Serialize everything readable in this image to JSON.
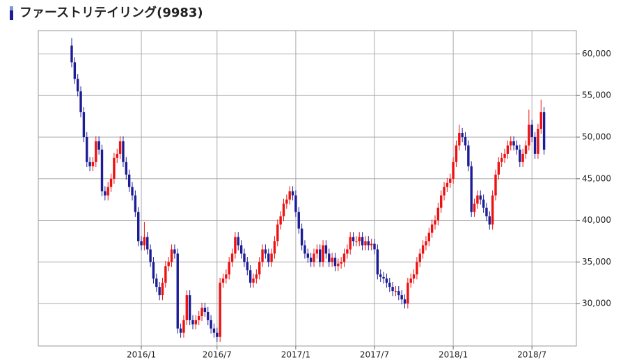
{
  "chart_data": {
    "type": "candlestick",
    "title": "ファーストリテイリング(9983)",
    "categories": [
      null,
      null,
      null,
      null,
      null,
      null,
      null,
      null,
      null,
      null,
      null,
      null,
      null,
      null,
      null,
      null,
      null,
      null,
      null,
      null,
      null,
      null,
      null,
      "2016/1",
      null,
      null,
      null,
      null,
      null,
      null,
      null,
      null,
      null,
      null,
      null,
      null,
      null,
      null,
      null,
      null,
      null,
      null,
      null,
      null,
      null,
      null,
      null,
      null,
      "2016/7",
      null,
      null,
      null,
      null,
      null,
      null,
      null,
      null,
      null,
      null,
      null,
      null,
      null,
      null,
      null,
      null,
      null,
      null,
      null,
      null,
      null,
      null,
      null,
      null,
      null,
      "2017/1",
      null,
      null,
      null,
      null,
      null,
      null,
      null,
      null,
      null,
      null,
      null,
      null,
      null,
      null,
      null,
      null,
      null,
      null,
      null,
      null,
      null,
      null,
      null,
      null,
      null,
      "2017/7",
      null,
      null,
      null,
      null,
      null,
      null,
      null,
      null,
      null,
      null,
      null,
      null,
      null,
      null,
      null,
      null,
      null,
      null,
      null,
      null,
      null,
      null,
      null,
      null,
      null,
      "2018/1",
      null,
      null,
      null,
      null,
      null,
      null,
      null,
      null,
      null,
      null,
      null,
      null,
      null,
      null,
      null,
      null,
      null,
      null,
      null,
      null,
      null,
      null,
      null,
      null,
      null,
      "2018/7",
      null,
      null,
      null,
      null
    ],
    "open": [
      61000,
      59000,
      57000,
      55500,
      53000,
      50000,
      47000,
      46500,
      47000,
      49500,
      48500,
      43500,
      43000,
      44000,
      45000,
      47500,
      48000,
      49500,
      47000,
      45500,
      44000,
      43000,
      41000,
      37500,
      37000,
      38000,
      36500,
      35000,
      33000,
      32000,
      31000,
      32500,
      34500,
      35000,
      36500,
      36000,
      27000,
      26500,
      28000,
      31000,
      28000,
      27500,
      28000,
      28500,
      29500,
      29000,
      28000,
      27000,
      26500,
      26000,
      32500,
      33000,
      33500,
      35000,
      36000,
      38000,
      37000,
      36000,
      35000,
      34000,
      32500,
      33000,
      33500,
      35000,
      36500,
      36000,
      35000,
      36000,
      37500,
      39500,
      40500,
      42000,
      42500,
      43500,
      43000,
      41000,
      39000,
      37000,
      36000,
      35500,
      35000,
      36000,
      36500,
      35000,
      37000,
      36000,
      35000,
      35500,
      34500,
      34800,
      35000,
      36000,
      36500,
      38000,
      37500,
      37500,
      38000,
      37000,
      37500,
      37000,
      37200,
      36500,
      33500,
      33200,
      33000,
      32500,
      32000,
      31500,
      31500,
      31000,
      30500,
      30000,
      32500,
      33000,
      33500,
      35000,
      36000,
      37000,
      37500,
      38500,
      39500,
      40000,
      41500,
      43000,
      44000,
      44500,
      45000,
      47000,
      49000,
      50500,
      50000,
      49000,
      46500,
      41000,
      42000,
      43000,
      42500,
      41500,
      40500,
      39500,
      43000,
      45500,
      47000,
      47500,
      48000,
      49000,
      49500,
      49000,
      48500,
      47000,
      48000,
      49000,
      51500,
      50000,
      48000,
      51000,
      53000
    ],
    "high": [
      61900,
      59600,
      57600,
      56100,
      53600,
      50600,
      47600,
      47600,
      50100,
      50100,
      49100,
      44100,
      44600,
      45600,
      48100,
      48600,
      50100,
      50100,
      47600,
      46100,
      44600,
      43600,
      41600,
      38100,
      39800,
      38600,
      37100,
      35600,
      33600,
      32600,
      33100,
      35100,
      35600,
      37100,
      37100,
      36600,
      27600,
      28600,
      31600,
      31600,
      28600,
      28600,
      29100,
      30100,
      30100,
      29600,
      28600,
      27600,
      27100,
      33100,
      33600,
      34100,
      35600,
      36600,
      38600,
      38600,
      37600,
      36600,
      35600,
      34600,
      33600,
      34100,
      35600,
      37100,
      37100,
      36600,
      36600,
      38100,
      40100,
      41100,
      42600,
      43100,
      44100,
      44100,
      43600,
      41600,
      39600,
      37600,
      36600,
      36100,
      36600,
      37100,
      37100,
      37600,
      37600,
      36600,
      36100,
      36100,
      35400,
      35600,
      36600,
      37100,
      38600,
      38600,
      38100,
      38600,
      38600,
      38100,
      38100,
      37800,
      37800,
      37100,
      34100,
      33800,
      33600,
      33100,
      32600,
      32100,
      32100,
      31600,
      31100,
      33100,
      33600,
      34100,
      35600,
      36600,
      37600,
      38100,
      39100,
      40100,
      40600,
      42100,
      43600,
      44600,
      45100,
      45600,
      47600,
      49600,
      51500,
      51100,
      50600,
      49600,
      47100,
      42600,
      43600,
      43600,
      43100,
      42100,
      41100,
      43600,
      46100,
      47600,
      48100,
      48600,
      49600,
      50100,
      50100,
      49600,
      49100,
      48600,
      49600,
      53300,
      52100,
      50600,
      51600,
      54500,
      53600
    ],
    "low": [
      58400,
      56400,
      54900,
      52400,
      49400,
      46400,
      45900,
      45900,
      46400,
      47900,
      42900,
      42400,
      42400,
      43400,
      44400,
      46900,
      47400,
      46400,
      44900,
      43400,
      42400,
      40400,
      36900,
      36400,
      36400,
      35900,
      34400,
      32400,
      31400,
      30400,
      30400,
      31900,
      33900,
      34400,
      35400,
      26400,
      25900,
      25900,
      27400,
      27400,
      26900,
      26900,
      27400,
      27900,
      28400,
      27400,
      26400,
      25900,
      25400,
      25400,
      31900,
      32400,
      32900,
      34400,
      35400,
      36400,
      35400,
      34400,
      33400,
      31900,
      31900,
      32400,
      32900,
      34400,
      35400,
      34400,
      34400,
      35400,
      36900,
      38900,
      39900,
      41400,
      41900,
      42400,
      40400,
      38400,
      36400,
      35400,
      34900,
      34400,
      34400,
      35400,
      34400,
      34400,
      35400,
      34400,
      34400,
      33900,
      33900,
      34200,
      34400,
      35400,
      35900,
      36900,
      36900,
      36900,
      36400,
      36400,
      36400,
      36400,
      35900,
      32900,
      32600,
      32400,
      31900,
      31400,
      30900,
      30900,
      30400,
      29900,
      29400,
      29400,
      31900,
      32400,
      32900,
      34400,
      35400,
      36400,
      36900,
      37900,
      38900,
      39400,
      40900,
      42400,
      43400,
      43900,
      44400,
      46400,
      48400,
      49400,
      48400,
      45900,
      40400,
      40400,
      41400,
      41900,
      40900,
      39900,
      38900,
      38900,
      42400,
      44900,
      46400,
      46900,
      47400,
      48400,
      48400,
      47900,
      46400,
      46400,
      47400,
      48400,
      49400,
      47400,
      47400,
      50400,
      47900
    ],
    "close": [
      59000,
      57000,
      55500,
      53000,
      50000,
      47000,
      46500,
      47000,
      49500,
      48500,
      43500,
      43000,
      44000,
      45000,
      47500,
      48000,
      49500,
      47000,
      45500,
      44000,
      43000,
      41000,
      37500,
      37000,
      38000,
      36500,
      35000,
      33000,
      32000,
      31000,
      32500,
      34500,
      35000,
      36500,
      36000,
      27000,
      26500,
      28000,
      31000,
      28000,
      27500,
      28000,
      28500,
      29500,
      29000,
      28000,
      27000,
      26500,
      26000,
      32500,
      33000,
      33500,
      35000,
      36000,
      38000,
      37000,
      36000,
      35000,
      34000,
      32500,
      33000,
      33500,
      35000,
      36500,
      36000,
      35000,
      36000,
      37500,
      39500,
      40500,
      42000,
      42500,
      43500,
      43000,
      41000,
      39000,
      37000,
      36000,
      35500,
      35000,
      36000,
      36500,
      35000,
      37000,
      36000,
      35000,
      35500,
      34500,
      34800,
      35000,
      36000,
      36500,
      38000,
      37500,
      37500,
      38000,
      37000,
      37500,
      37000,
      37200,
      36500,
      33500,
      33200,
      33000,
      32500,
      32000,
      31500,
      31500,
      31000,
      30500,
      30000,
      32500,
      33000,
      33500,
      35000,
      36000,
      37000,
      37500,
      38500,
      39500,
      40000,
      41500,
      43000,
      44000,
      44500,
      45000,
      47000,
      49000,
      50500,
      50000,
      49000,
      46500,
      41000,
      42000,
      43000,
      42500,
      41500,
      40500,
      39500,
      43000,
      45500,
      47000,
      47500,
      48000,
      49000,
      49500,
      49000,
      48500,
      47000,
      48000,
      49000,
      51500,
      50000,
      48000,
      51000,
      53000,
      48500
    ],
    "up_color": "#ee1111",
    "down_color": "#1c1c96",
    "ylim": [
      24900,
      62800
    ],
    "yticks": [
      {
        "value": 30000,
        "label": "30,000"
      },
      {
        "value": 35000,
        "label": "35,000"
      },
      {
        "value": 40000,
        "label": "40,000"
      },
      {
        "value": 45000,
        "label": "45,000"
      },
      {
        "value": 50000,
        "label": "50,000"
      },
      {
        "value": 55000,
        "label": "55,000"
      },
      {
        "value": 60000,
        "label": "60,000"
      }
    ],
    "grid": true
  }
}
